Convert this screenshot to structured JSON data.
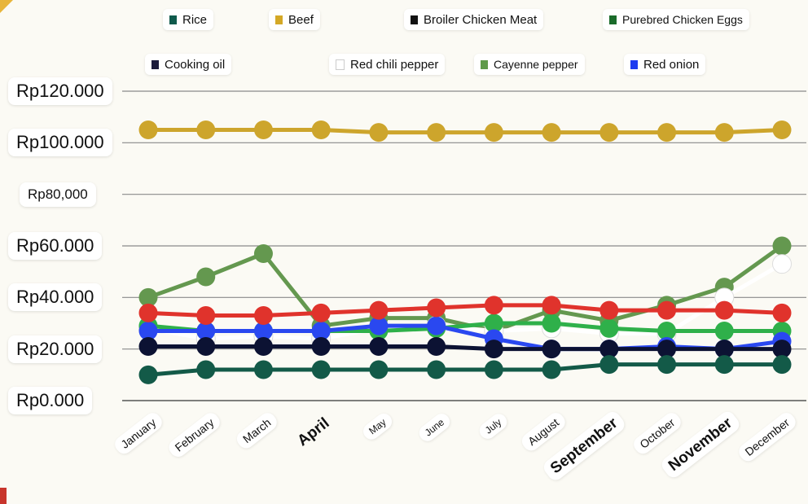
{
  "chart_data": {
    "type": "line",
    "title": "",
    "xlabel": "",
    "ylabel": "",
    "ylim": [
      0,
      120000
    ],
    "grid": true,
    "legend_position": "top",
    "categories": [
      "January",
      "February",
      "March",
      "April",
      "May",
      "June",
      "July",
      "August",
      "September",
      "October",
      "November",
      "December"
    ],
    "y_ticks": [
      {
        "value": 0,
        "label": "Rp0.000"
      },
      {
        "value": 20000,
        "label": "Rp20.000"
      },
      {
        "value": 40000,
        "label": "Rp40.000"
      },
      {
        "value": 60000,
        "label": "Rp60.000"
      },
      {
        "value": 80000,
        "label": "Rp80,000"
      },
      {
        "value": 100000,
        "label": "Rp100.000"
      },
      {
        "value": 120000,
        "label": "Rp120.000"
      }
    ],
    "legend": [
      {
        "name": "Rice",
        "color": "#0f5a4c"
      },
      {
        "name": "Beef",
        "color": "#d4a826"
      },
      {
        "name": "Broiler Chicken Meat",
        "color": "#111111"
      },
      {
        "name": "Purebred Chicken Eggs",
        "color": "#1a6b2a"
      },
      {
        "name": "Cooking oil",
        "color": "#1a1a3a"
      },
      {
        "name": "Red chili pepper",
        "color": "#ffffff"
      },
      {
        "name": "Cayenne pepper",
        "color": "#5f9a4a"
      },
      {
        "name": "Red onion",
        "color": "#1e3cf0"
      }
    ],
    "series": [
      {
        "name": "Beef",
        "color": "#cda52c",
        "values": [
          105000,
          105000,
          105000,
          105000,
          104000,
          104000,
          104000,
          104000,
          104000,
          104000,
          104000,
          105000
        ]
      },
      {
        "name": "Cayenne pepper",
        "color": "#64984f",
        "values": [
          40000,
          48000,
          57000,
          29000,
          32000,
          32000,
          27000,
          35000,
          31000,
          37000,
          44000,
          60000
        ]
      },
      {
        "name": "Red chili pepper",
        "color": "#ffffff",
        "values": [
          28000,
          24000,
          25000,
          24000,
          28000,
          29000,
          27000,
          28000,
          26000,
          26000,
          40000,
          53000
        ]
      },
      {
        "name": "Purebred Chicken Eggs",
        "color": "#2fb04a",
        "values": [
          29000,
          27000,
          27000,
          27000,
          27000,
          28000,
          30000,
          30000,
          28000,
          27000,
          27000,
          27000
        ]
      },
      {
        "name": "Red onion",
        "color": "#2a48f0",
        "values": [
          27000,
          27000,
          27000,
          27000,
          29000,
          29000,
          24000,
          20000,
          20000,
          21000,
          20000,
          23000
        ]
      },
      {
        "name": "Broiler Chicken Meat",
        "color": "#0c1233",
        "values": [
          21000,
          21000,
          21000,
          21000,
          21000,
          21000,
          20000,
          20000,
          20000,
          20000,
          20000,
          20000
        ]
      },
      {
        "name": "Rice",
        "color": "#135a48",
        "values": [
          10000,
          12000,
          12000,
          12000,
          12000,
          12000,
          12000,
          12000,
          14000,
          14000,
          14000,
          14000
        ]
      },
      {
        "name": "Cooking oil",
        "color": "#e0332c",
        "values": [
          34000,
          33000,
          33000,
          34000,
          35000,
          36000,
          37000,
          37000,
          35000,
          35000,
          35000,
          34000
        ]
      }
    ]
  }
}
